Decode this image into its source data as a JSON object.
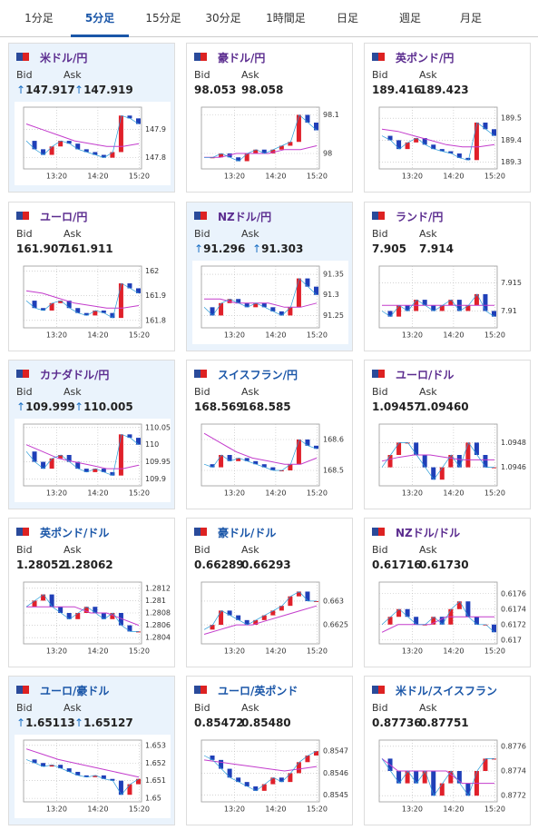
{
  "tabs": [
    "1分足",
    "5分足",
    "15分足",
    "30分足",
    "1時間足",
    "日足",
    "週足",
    "月足"
  ],
  "active_tab": 1,
  "bid_label": "Bid",
  "ask_label": "Ask",
  "cards": [
    {
      "pair": "米ドル/円",
      "color": "#5b2c8f",
      "highlight": true,
      "arrow": "↑",
      "bid": "147.917",
      "ask": "147.919",
      "chart": {
        "type": "candlestick",
        "values": [
          147.86,
          147.83,
          147.81,
          147.84,
          147.86,
          147.85,
          147.83,
          147.82,
          147.81,
          147.8,
          147.82,
          147.95,
          147.94,
          147.92
        ],
        "ma": [
          147.92,
          147.9,
          147.88,
          147.86,
          147.85,
          147.84,
          147.84,
          147.85
        ],
        "ylim": [
          147.76,
          147.98
        ],
        "yticks": [
          147.8,
          147.9
        ],
        "xticks": [
          "13:20",
          "14:20",
          "15:20"
        ]
      }
    },
    {
      "pair": "豪ドル/円",
      "color": "#5b2c8f",
      "highlight": false,
      "bid": "98.053",
      "ask": "98.058",
      "chart": {
        "type": "candlestick",
        "values": [
          97.99,
          97.99,
          98.0,
          97.99,
          97.98,
          98.0,
          98.01,
          98.0,
          98.01,
          98.02,
          98.03,
          98.1,
          98.08,
          98.06
        ],
        "ma": [
          97.99,
          97.99,
          98.0,
          98.0,
          98.0,
          98.01,
          98.01,
          98.02
        ],
        "ylim": [
          97.96,
          98.12
        ],
        "yticks": [
          98,
          98.1
        ],
        "xticks": [
          "13:20",
          "14:20",
          "15:20"
        ]
      }
    },
    {
      "pair": "英ポンド/円",
      "color": "#5b2c8f",
      "highlight": false,
      "bid": "189.416",
      "ask": "189.423",
      "chart": {
        "type": "candlestick",
        "values": [
          189.42,
          189.4,
          189.36,
          189.39,
          189.41,
          189.38,
          189.36,
          189.35,
          189.34,
          189.32,
          189.31,
          189.48,
          189.45,
          189.42
        ],
        "ma": [
          189.45,
          189.44,
          189.42,
          189.4,
          189.38,
          189.37,
          189.37,
          189.38
        ],
        "ylim": [
          189.27,
          189.55
        ],
        "yticks": [
          189.3,
          189.4,
          189.5
        ],
        "xticks": [
          "13:20",
          "14:20",
          "15:20"
        ]
      }
    },
    {
      "pair": "ユーロ/円",
      "color": "#5b2c8f",
      "highlight": false,
      "bid": "161.907",
      "ask": "161.911",
      "chart": {
        "type": "candlestick",
        "values": [
          161.88,
          161.85,
          161.84,
          161.87,
          161.88,
          161.85,
          161.83,
          161.82,
          161.84,
          161.83,
          161.81,
          161.95,
          161.93,
          161.91
        ],
        "ma": [
          161.92,
          161.91,
          161.89,
          161.87,
          161.86,
          161.85,
          161.85,
          161.86
        ],
        "ylim": [
          161.77,
          162.02
        ],
        "yticks": [
          161.8,
          161.9,
          162
        ],
        "xticks": [
          "13:20",
          "14:20",
          "15:20"
        ]
      }
    },
    {
      "pair": "NZドル/円",
      "color": "#5b2c8f",
      "highlight": true,
      "arrow": "↑",
      "bid": "91.296",
      "ask": "91.303",
      "chart": {
        "type": "candlestick",
        "values": [
          91.27,
          91.25,
          91.28,
          91.29,
          91.28,
          91.27,
          91.28,
          91.27,
          91.26,
          91.25,
          91.27,
          91.34,
          91.32,
          91.3
        ],
        "ma": [
          91.29,
          91.29,
          91.28,
          91.28,
          91.28,
          91.27,
          91.27,
          91.28
        ],
        "ylim": [
          91.22,
          91.37
        ],
        "yticks": [
          91.25,
          91.3,
          91.35
        ],
        "xticks": [
          "13:20",
          "14:20",
          "15:20"
        ]
      }
    },
    {
      "pair": "ランド/円",
      "color": "#5b2c8f",
      "highlight": false,
      "bid": "7.905",
      "ask": "7.914",
      "chart": {
        "type": "candlestick",
        "values": [
          7.91,
          7.909,
          7.911,
          7.91,
          7.912,
          7.911,
          7.91,
          7.911,
          7.912,
          7.91,
          7.911,
          7.913,
          7.91,
          7.909
        ],
        "ma": [
          7.911,
          7.911,
          7.911,
          7.911,
          7.911,
          7.911,
          7.911,
          7.911
        ],
        "ylim": [
          7.907,
          7.918
        ],
        "yticks": [
          7.91,
          7.915
        ],
        "xticks": [
          "13:20",
          "14:20",
          "15:20"
        ]
      }
    },
    {
      "pair": "カナダドル/円",
      "color": "#5b2c8f",
      "highlight": true,
      "arrow": "↑",
      "bid": "109.999",
      "ask": "110.005",
      "chart": {
        "type": "candlestick",
        "values": [
          109.98,
          109.95,
          109.93,
          109.96,
          109.97,
          109.95,
          109.93,
          109.92,
          109.93,
          109.92,
          109.91,
          110.03,
          110.02,
          110.0
        ],
        "ma": [
          110.0,
          109.98,
          109.96,
          109.95,
          109.94,
          109.93,
          109.93,
          109.94
        ],
        "ylim": [
          109.88,
          110.06
        ],
        "yticks": [
          109.9,
          109.95,
          110,
          110.05
        ],
        "xticks": [
          "13:20",
          "14:20",
          "15:20"
        ]
      }
    },
    {
      "pair": "スイスフラン/円",
      "color": "#1a56a8",
      "highlight": false,
      "bid": "168.569",
      "ask": "168.585",
      "chart": {
        "type": "candlestick",
        "values": [
          168.52,
          168.51,
          168.55,
          168.53,
          168.54,
          168.53,
          168.52,
          168.51,
          168.5,
          168.5,
          168.52,
          168.6,
          168.58,
          168.57
        ],
        "ma": [
          168.62,
          168.59,
          168.56,
          168.54,
          168.53,
          168.52,
          168.52,
          168.54
        ],
        "ylim": [
          168.45,
          168.65
        ],
        "yticks": [
          168.5,
          168.6
        ],
        "xticks": [
          "13:20",
          "14:20",
          "15:20"
        ]
      }
    },
    {
      "pair": "ユーロ/ドル",
      "color": "#5b2c8f",
      "highlight": false,
      "bid": "1.09457",
      "ask": "1.09460",
      "chart": {
        "type": "candlestick",
        "values": [
          1.0946,
          1.0947,
          1.0948,
          1.0948,
          1.0947,
          1.0946,
          1.0945,
          1.0946,
          1.0947,
          1.0946,
          1.0948,
          1.0947,
          1.0946,
          1.0946
        ],
        "ma": [
          1.09465,
          1.09468,
          1.0947,
          1.0947,
          1.09468,
          1.09466,
          1.09466,
          1.09466
        ],
        "ylim": [
          1.09445,
          1.09495
        ],
        "yticks": [
          1.0946,
          1.0948
        ],
        "xticks": [
          "13:20",
          "14:20",
          "15:20"
        ]
      }
    },
    {
      "pair": "英ポンド/ドル",
      "color": "#1a56a8",
      "highlight": false,
      "bid": "1.28052",
      "ask": "1.28062",
      "chart": {
        "type": "candlestick",
        "values": [
          1.2809,
          1.281,
          1.2811,
          1.2809,
          1.2808,
          1.2807,
          1.2808,
          1.2809,
          1.2808,
          1.2807,
          1.2808,
          1.2806,
          1.2805,
          1.2805
        ],
        "ma": [
          1.2809,
          1.2809,
          1.2809,
          1.2809,
          1.2808,
          1.2808,
          1.2807,
          1.2806
        ],
        "ylim": [
          1.2803,
          1.2813
        ],
        "yticks": [
          1.2804,
          1.2806,
          1.2808,
          1.281,
          1.2812
        ],
        "xticks": [
          "13:20",
          "14:20",
          "15:20"
        ]
      }
    },
    {
      "pair": "豪ドル/ドル",
      "color": "#1a56a8",
      "highlight": false,
      "bid": "0.66289",
      "ask": "0.66293",
      "chart": {
        "type": "candlestick",
        "values": [
          0.6624,
          0.6625,
          0.6628,
          0.6627,
          0.6626,
          0.6625,
          0.6626,
          0.6627,
          0.6628,
          0.6629,
          0.6631,
          0.6632,
          0.663,
          0.663
        ],
        "ma": [
          0.6623,
          0.6624,
          0.6625,
          0.6625,
          0.6626,
          0.6627,
          0.6628,
          0.6629
        ],
        "ylim": [
          0.6621,
          0.6634
        ],
        "yticks": [
          0.6625,
          0.663
        ],
        "xticks": [
          "13:20",
          "14:20",
          "15:20"
        ]
      }
    },
    {
      "pair": "NZドル/ドル",
      "color": "#5b2c8f",
      "highlight": false,
      "bid": "0.61716",
      "ask": "0.61730",
      "chart": {
        "type": "candlestick",
        "values": [
          0.6172,
          0.6173,
          0.6174,
          0.6173,
          0.6172,
          0.6172,
          0.6173,
          0.6172,
          0.6174,
          0.6175,
          0.6173,
          0.6172,
          0.6172,
          0.6171
        ],
        "ma": [
          0.6171,
          0.6172,
          0.6172,
          0.6172,
          0.6173,
          0.6173,
          0.6173,
          0.6173
        ],
        "ylim": [
          0.61695,
          0.61775
        ],
        "yticks": [
          0.617,
          0.6172,
          0.6174,
          0.6176
        ],
        "xticks": [
          "13:20",
          "14:20",
          "15:20"
        ]
      }
    },
    {
      "pair": "ユーロ/豪ドル",
      "color": "#1a56a8",
      "highlight": true,
      "arrow": "↑",
      "bid": "1.65113",
      "ask": "1.65127",
      "chart": {
        "type": "candlestick",
        "values": [
          1.6522,
          1.652,
          1.6518,
          1.6519,
          1.6517,
          1.6515,
          1.6513,
          1.6512,
          1.6513,
          1.6511,
          1.651,
          1.6502,
          1.6508,
          1.6511
        ],
        "ma": [
          1.6528,
          1.6525,
          1.6522,
          1.652,
          1.6518,
          1.6516,
          1.6514,
          1.6512
        ],
        "ylim": [
          1.6498,
          1.6533
        ],
        "yticks": [
          1.65,
          1.651,
          1.652,
          1.653
        ],
        "xticks": [
          "13:20",
          "14:20",
          "15:20"
        ]
      }
    },
    {
      "pair": "ユーロ/英ポンド",
      "color": "#1a56a8",
      "highlight": false,
      "bid": "0.85472",
      "ask": "0.85480",
      "chart": {
        "type": "candlestick",
        "values": [
          0.85468,
          0.85466,
          0.85462,
          0.85458,
          0.85456,
          0.85454,
          0.85452,
          0.85455,
          0.85458,
          0.85456,
          0.8546,
          0.85465,
          0.85468,
          0.8547
        ],
        "ma": [
          0.85466,
          0.85465,
          0.85464,
          0.85463,
          0.85462,
          0.85461,
          0.85462,
          0.85463
        ],
        "ylim": [
          0.85447,
          0.85475
        ],
        "yticks": [
          0.8545,
          0.8546,
          0.8547
        ],
        "xticks": [
          "13:20",
          "14:20",
          "15:20"
        ]
      }
    },
    {
      "pair": "米ドル/スイスフラン",
      "color": "#1a56a8",
      "highlight": false,
      "bid": "0.87736",
      "ask": "0.87751",
      "chart": {
        "type": "candlestick",
        "values": [
          0.8775,
          0.8774,
          0.8773,
          0.8774,
          0.8773,
          0.8774,
          0.8772,
          0.8773,
          0.8774,
          0.8773,
          0.8772,
          0.8774,
          0.8775,
          0.8775
        ],
        "ma": [
          0.8775,
          0.8774,
          0.8774,
          0.8774,
          0.8774,
          0.8773,
          0.8773,
          0.8773
        ],
        "ylim": [
          0.87715,
          0.87765
        ],
        "yticks": [
          0.8772,
          0.8774,
          0.8776
        ],
        "xticks": [
          "13:20",
          "14:20",
          "15:20"
        ]
      }
    }
  ]
}
